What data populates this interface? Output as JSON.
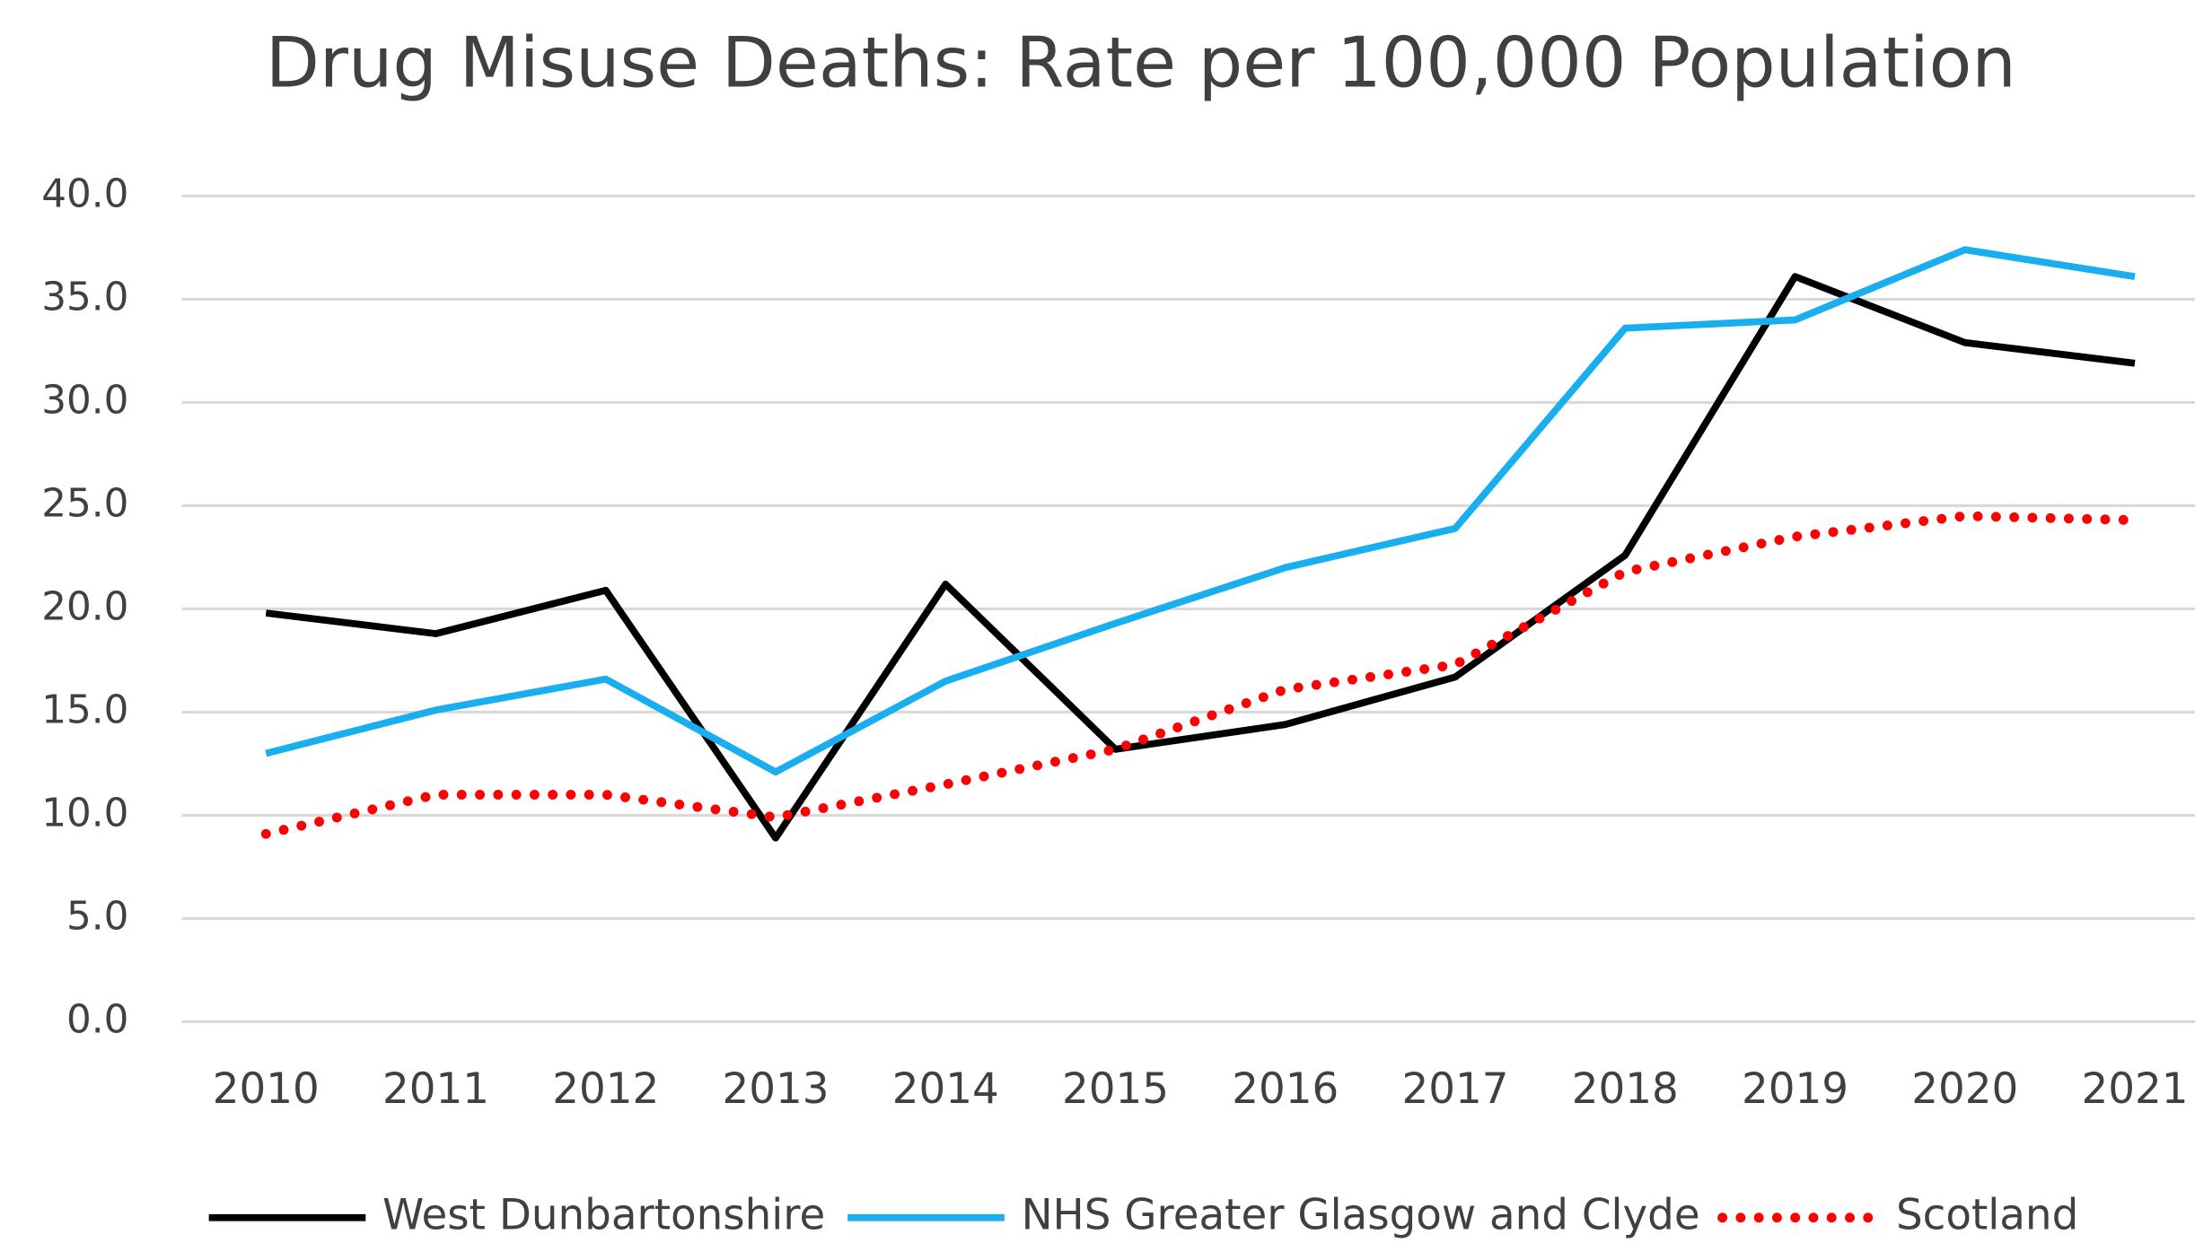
{
  "chart_data": {
    "type": "line",
    "title": "Drug Misuse Deaths: Rate per 100,000 Population",
    "categories": [
      "2010",
      "2011",
      "2012",
      "2013",
      "2014",
      "2015",
      "2016",
      "2017",
      "2018",
      "2019",
      "2020",
      "2021"
    ],
    "series": [
      {
        "name": "West Dunbartonshire",
        "color": "#000000",
        "line_style": "solid",
        "values": [
          19.8,
          18.8,
          20.9,
          8.9,
          21.2,
          13.2,
          14.4,
          16.7,
          22.6,
          36.1,
          32.9,
          31.9
        ]
      },
      {
        "name": "NHS Greater Glasgow and Clyde",
        "color": "#19aef0",
        "line_style": "solid",
        "values": [
          13.0,
          15.1,
          16.6,
          12.1,
          16.5,
          19.3,
          22.0,
          23.9,
          33.6,
          34.0,
          37.4,
          36.1
        ]
      },
      {
        "name": "Scotland",
        "color": "#ff0000",
        "line_style": "dotted",
        "values": [
          9.1,
          11.0,
          11.0,
          9.9,
          11.5,
          13.2,
          16.1,
          17.3,
          21.8,
          23.5,
          24.5,
          24.3
        ]
      }
    ],
    "ylim": [
      0,
      40
    ],
    "yticks": [
      {
        "value": 0,
        "label": "0.0"
      },
      {
        "value": 5,
        "label": "5.0"
      },
      {
        "value": 10,
        "label": "10.0"
      },
      {
        "value": 15,
        "label": "15.0"
      },
      {
        "value": 20,
        "label": "20.0"
      },
      {
        "value": 25,
        "label": "25.0"
      },
      {
        "value": 30,
        "label": "30.0"
      },
      {
        "value": 35,
        "label": "35.0"
      },
      {
        "value": 40,
        "label": "40.0"
      }
    ],
    "grid": true,
    "legend": "bottom"
  }
}
